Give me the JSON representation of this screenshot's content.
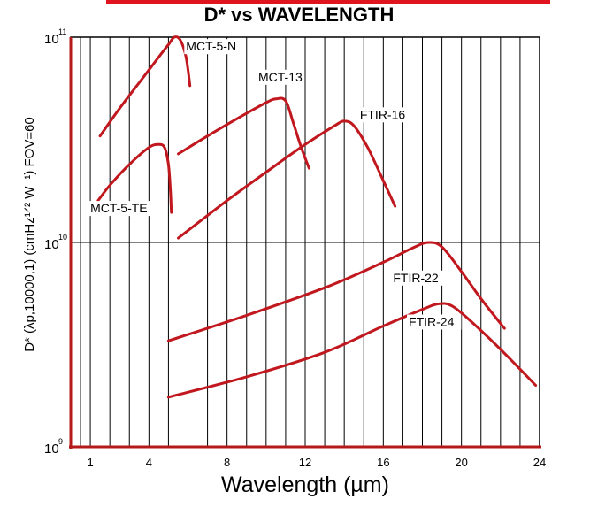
{
  "chart_data": {
    "type": "line",
    "title": "D* vs WAVELENGTH",
    "xlabel": "Wavelength (µm)",
    "ylabel": "D* (λp,10000,1) (cmHz¹ᐟ² W⁻¹) FOV=60",
    "x_ticks": [
      "1",
      "4",
      "8",
      "12",
      "16",
      "20",
      "24"
    ],
    "x_tick_values": [
      1,
      4,
      8,
      12,
      16,
      20,
      24
    ],
    "y_ticks": [
      {
        "base": "10",
        "exp": "9",
        "value": 1000000000.0
      },
      {
        "base": "10",
        "exp": "10",
        "value": 10000000000.0
      },
      {
        "base": "10",
        "exp": "11",
        "value": 100000000000.0
      }
    ],
    "xlim": [
      0,
      24
    ],
    "ylim": [
      1000000000.0,
      100000000000.0
    ],
    "y_scale": "log",
    "grid": true,
    "series": [
      {
        "name": "MCT-5-N",
        "color": "#c0181e",
        "x": [
          1.5,
          2.5,
          3.5,
          4.5,
          5.0,
          5.3,
          5.6,
          5.9,
          6.1
        ],
        "y": [
          33000000000.0,
          45000000000.0,
          60000000000.0,
          80000000000.0,
          92000000000.0,
          100000000000.0,
          97000000000.0,
          80000000000.0,
          58000000000.0
        ]
      },
      {
        "name": "MCT-5-TE",
        "color": "#c0181e",
        "x": [
          1.4,
          2.0,
          3.0,
          4.0,
          4.5,
          4.8,
          5.0,
          5.1,
          5.15
        ],
        "y": [
          16000000000.0,
          19000000000.0,
          24000000000.0,
          29000000000.0,
          30000000000.0,
          29000000000.0,
          24000000000.0,
          18000000000.0,
          14000000000.0
        ]
      },
      {
        "name": "MCT-13",
        "color": "#c0181e",
        "x": [
          5.5,
          7.0,
          8.5,
          10.0,
          10.5,
          11.0,
          11.4,
          11.8,
          12.2
        ],
        "y": [
          27000000000.0,
          33000000000.0,
          40000000000.0,
          48000000000.0,
          50000000000.0,
          49000000000.0,
          38000000000.0,
          29000000000.0,
          23000000000.0
        ]
      },
      {
        "name": "FTIR-16",
        "color": "#c0181e",
        "x": [
          5.5,
          8.0,
          10.0,
          12.0,
          13.5,
          14.0,
          14.5,
          15.2,
          16.0,
          16.6
        ],
        "y": [
          10500000000.0,
          16000000000.0,
          22000000000.0,
          30000000000.0,
          37000000000.0,
          39000000000.0,
          37000000000.0,
          29000000000.0,
          20000000000.0,
          15000000000.0
        ]
      },
      {
        "name": "FTIR-22",
        "color": "#c0181e",
        "x": [
          5.0,
          9.0,
          13.0,
          16.0,
          17.5,
          18.3,
          19.0,
          20.0,
          21.0,
          22.2
        ],
        "y": [
          3300000000.0,
          4400000000.0,
          6000000000.0,
          8000000000.0,
          9400000000.0,
          10000000000.0,
          9500000000.0,
          7200000000.0,
          5300000000.0,
          3800000000.0
        ]
      },
      {
        "name": "FTIR-24",
        "color": "#c0181e",
        "x": [
          5.0,
          9.0,
          13.0,
          16.0,
          18.0,
          18.8,
          19.5,
          20.5,
          22.0,
          23.8
        ],
        "y": [
          1750000000.0,
          2200000000.0,
          2900000000.0,
          3900000000.0,
          4700000000.0,
          5000000000.0,
          4900000000.0,
          4100000000.0,
          3000000000.0,
          2000000000.0
        ]
      }
    ]
  }
}
